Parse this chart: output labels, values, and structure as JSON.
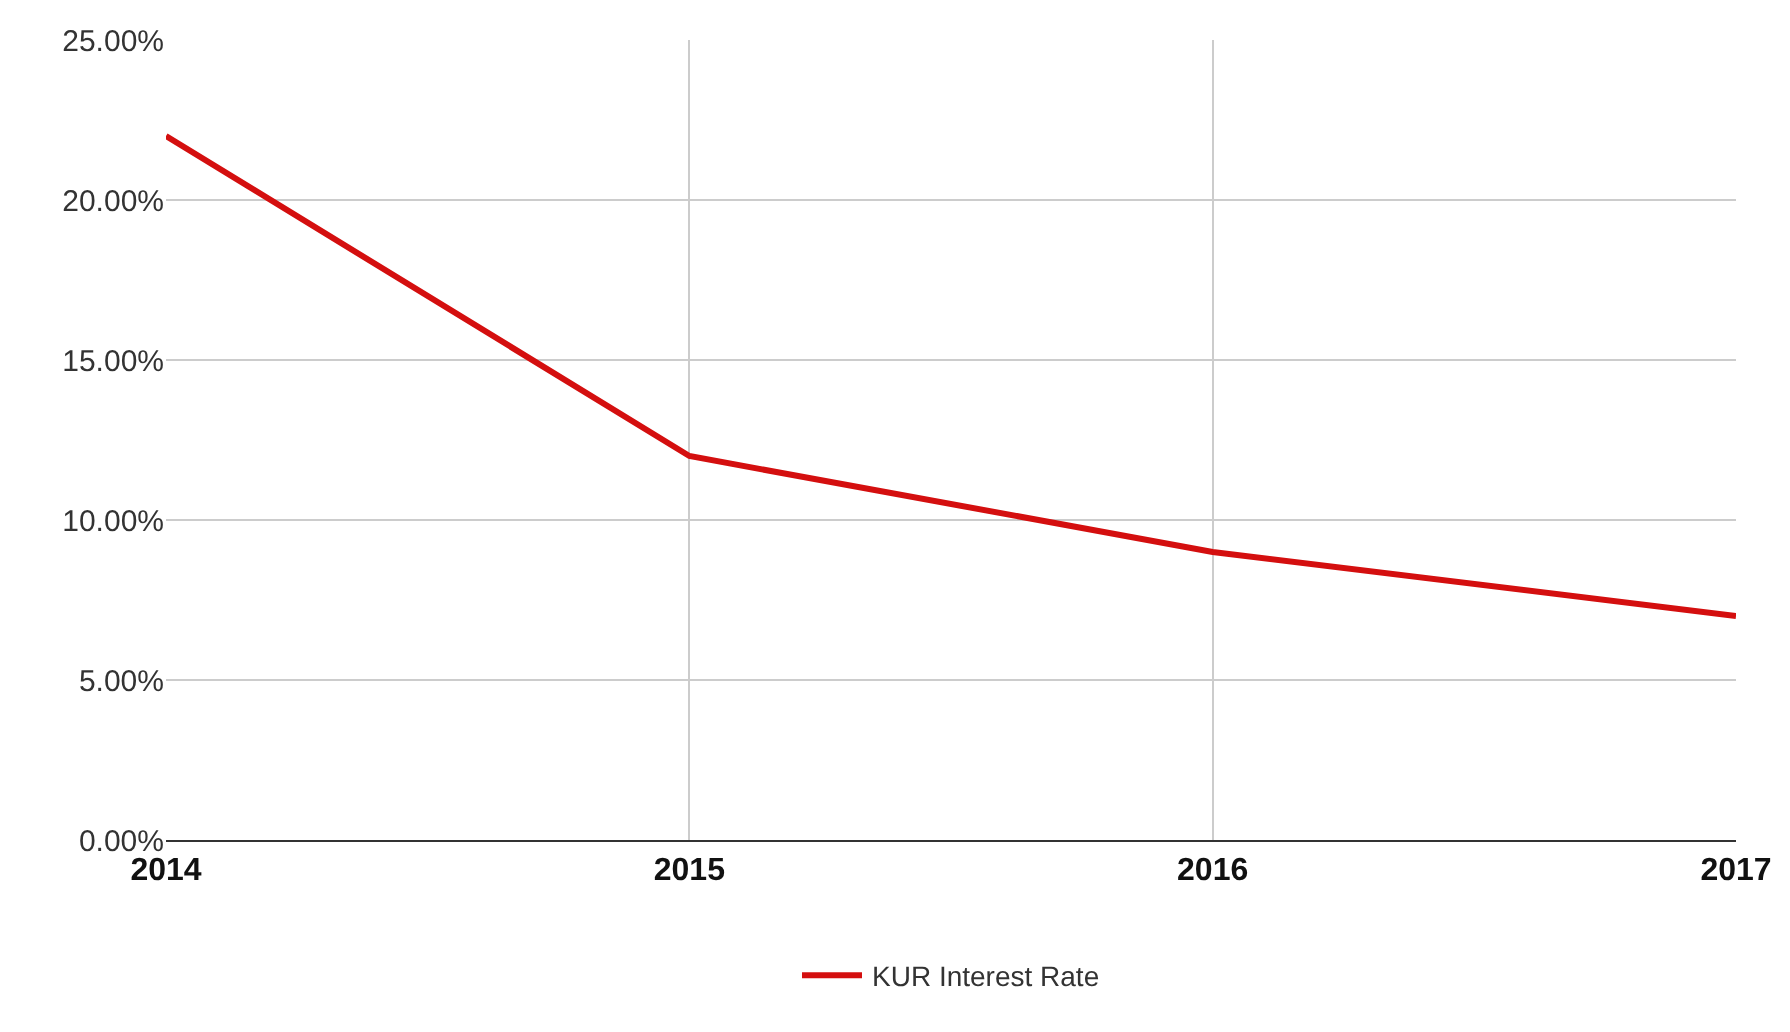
{
  "chart_data": {
    "type": "line",
    "x": [
      2014,
      2015,
      2016,
      2017
    ],
    "series": [
      {
        "name": "KUR Interest Rate",
        "color": "#d40f0f",
        "values": [
          22,
          12,
          9,
          7
        ]
      }
    ],
    "xlim": [
      2014,
      2017
    ],
    "xticks": [
      2014,
      2015,
      2016,
      2017
    ],
    "ylim": [
      0,
      25
    ],
    "yticks": [
      {
        "value": 0,
        "label": "0.00%"
      },
      {
        "value": 5,
        "label": "5.00%"
      },
      {
        "value": 10,
        "label": "10.00%"
      },
      {
        "value": 15,
        "label": "15.00%"
      },
      {
        "value": 20,
        "label": "20.00%"
      },
      {
        "value": 25,
        "label": "25.00%"
      }
    ],
    "grid": true,
    "legend": "bottom",
    "marker": "none",
    "line_style": "solid"
  }
}
